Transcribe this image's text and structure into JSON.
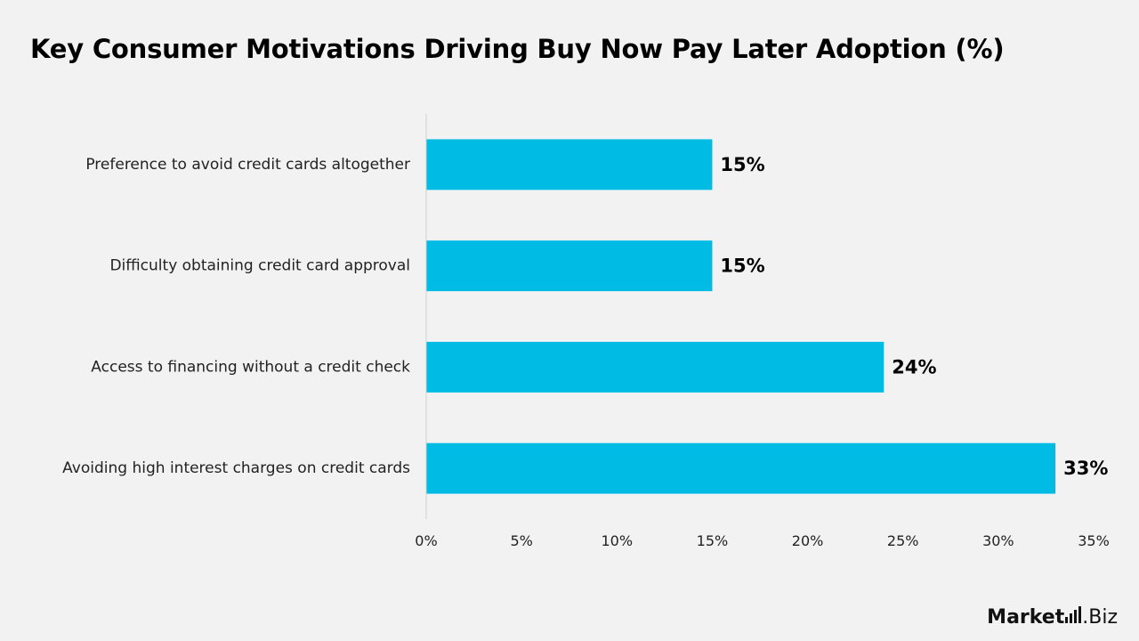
{
  "chart_data": {
    "type": "bar",
    "orientation": "horizontal",
    "title": "Key Consumer Motivations Driving Buy Now Pay Later Adoption (%)",
    "categories": [
      "Preference to avoid credit cards altogether",
      "Difficulty obtaining credit card approval",
      "Access to financing without a credit check",
      "Avoiding high interest charges on credit cards"
    ],
    "values": [
      15,
      15,
      24,
      33
    ],
    "data_labels": [
      "15%",
      "15%",
      "24%",
      "33%"
    ],
    "xlim": [
      0,
      35
    ],
    "x_ticks": [
      0,
      5,
      10,
      15,
      20,
      25,
      30,
      35
    ],
    "x_tick_labels": [
      "0%",
      "5%",
      "10%",
      "15%",
      "20%",
      "25%",
      "30%",
      "35%"
    ],
    "grid": false,
    "legend": "none",
    "bar_color": "#00bce4"
  },
  "branding": {
    "logo_text_strong": "Market",
    "logo_text_rest": ".Biz"
  },
  "colors": {
    "background": "#f2f2f2",
    "bar": "#00bce4",
    "axis_line": "#d0d0d0"
  }
}
